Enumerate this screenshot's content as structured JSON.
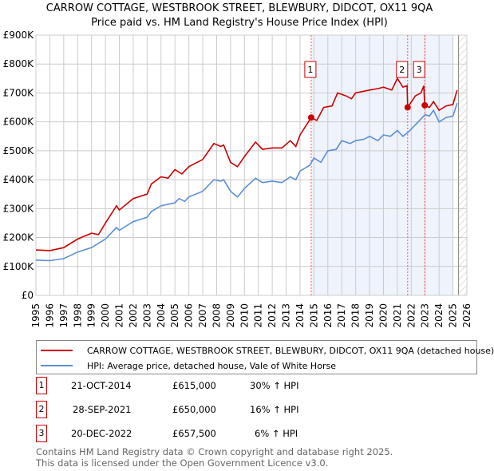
{
  "chart_data": {
    "type": "line",
    "title": "CARROW COTTAGE, WESTBROOK STREET, BLEWBURY, DIDCOT, OX11 9QA",
    "subtitle": "Price paid vs. HM Land Registry's House Price Index (HPI)",
    "xlim": [
      1995,
      2026
    ],
    "ylim": [
      0,
      900000
    ],
    "x_ticks": [
      "1995",
      "1996",
      "1997",
      "1998",
      "1999",
      "2000",
      "2001",
      "2002",
      "2003",
      "2004",
      "2005",
      "2006",
      "2007",
      "2008",
      "2009",
      "2010",
      "2011",
      "2012",
      "2013",
      "2014",
      "2015",
      "2016",
      "2017",
      "2018",
      "2019",
      "2020",
      "2021",
      "2022",
      "2023",
      "2024",
      "2025",
      "2026"
    ],
    "y_ticks": [
      {
        "v": 0,
        "label": "£0"
      },
      {
        "v": 100000,
        "label": "£100K"
      },
      {
        "v": 200000,
        "label": "£200K"
      },
      {
        "v": 300000,
        "label": "£300K"
      },
      {
        "v": 400000,
        "label": "£400K"
      },
      {
        "v": 500000,
        "label": "£500K"
      },
      {
        "v": 600000,
        "label": "£600K"
      },
      {
        "v": 700000,
        "label": "£700K"
      },
      {
        "v": 800000,
        "label": "£800K"
      },
      {
        "v": 900000,
        "label": "£900K"
      }
    ],
    "grid": true,
    "shaded_range": [
      2014.8,
      2025.0
    ],
    "hatched_from": 2025.4,
    "series": [
      {
        "name": "CARROW COTTAGE, WESTBROOK STREET, BLEWBURY, DIDCOT, OX11 9QA (detached house)",
        "color": "#cc0000",
        "x": [
          1995,
          1996,
          1997,
          1998,
          1999,
          1999.5,
          2000,
          2000.8,
          2001,
          2002,
          2003,
          2003.3,
          2004,
          2004.5,
          2005,
          2005.5,
          2006,
          2007,
          2007.8,
          2008.3,
          2008.5,
          2009,
          2009.5,
          2010,
          2010.8,
          2011.3,
          2012,
          2012.7,
          2013.3,
          2013.7,
          2014,
          2014.8,
          2015.2,
          2015.7,
          2016.3,
          2016.7,
          2017.3,
          2017.7,
          2018,
          2019,
          2019.6,
          2020,
          2020.6,
          2021,
          2021.4,
          2021.7,
          2021.74,
          2022.3,
          2022.7,
          2022.9,
          2022.97,
          2023.3,
          2023.6,
          2024,
          2024.5,
          2025,
          2025.3
        ],
        "y": [
          157000,
          155000,
          165000,
          195000,
          215000,
          210000,
          250000,
          310000,
          295000,
          335000,
          350000,
          385000,
          410000,
          405000,
          435000,
          420000,
          445000,
          470000,
          525000,
          515000,
          520000,
          460000,
          445000,
          480000,
          530000,
          505000,
          510000,
          510000,
          535000,
          515000,
          555000,
          615000,
          605000,
          650000,
          655000,
          700000,
          690000,
          680000,
          700000,
          710000,
          715000,
          720000,
          710000,
          750000,
          720000,
          725000,
          650000,
          690000,
          700000,
          725000,
          657500,
          650000,
          670000,
          640000,
          655000,
          660000,
          710000
        ]
      },
      {
        "name": "HPI: Average price, detached house, Vale of White Horse",
        "color": "#5b8fd4",
        "x": [
          1995,
          1996,
          1997,
          1998,
          1999,
          2000,
          2000.8,
          2001,
          2002,
          2003,
          2003.3,
          2004,
          2005,
          2005.3,
          2005.7,
          2006,
          2007,
          2007.8,
          2008.3,
          2008.5,
          2009,
          2009.5,
          2010,
          2010.8,
          2011.3,
          2012,
          2012.7,
          2013.3,
          2013.7,
          2014,
          2014.7,
          2015,
          2015.5,
          2016,
          2016.6,
          2017,
          2017.6,
          2018,
          2018.6,
          2019,
          2019.6,
          2020,
          2020.5,
          2021,
          2021.4,
          2021.8,
          2022.5,
          2023,
          2023.3,
          2023.6,
          2024,
          2024.5,
          2025,
          2025.3
        ],
        "y": [
          122000,
          120000,
          127000,
          150000,
          165000,
          195000,
          235000,
          225000,
          255000,
          270000,
          290000,
          310000,
          320000,
          335000,
          325000,
          340000,
          360000,
          400000,
          395000,
          400000,
          360000,
          340000,
          370000,
          405000,
          390000,
          395000,
          390000,
          410000,
          400000,
          430000,
          450000,
          475000,
          460000,
          500000,
          505000,
          535000,
          525000,
          535000,
          540000,
          550000,
          535000,
          555000,
          550000,
          570000,
          550000,
          565000,
          600000,
          625000,
          620000,
          640000,
          600000,
          615000,
          620000,
          665000
        ]
      }
    ],
    "sales": [
      {
        "id": "1",
        "x": 2014.8,
        "y": 615000
      },
      {
        "id": "2",
        "x": 2021.74,
        "y": 650000
      },
      {
        "id": "3",
        "x": 2022.97,
        "y": 657500
      }
    ]
  },
  "header": {
    "title": "CARROW COTTAGE, WESTBROOK STREET, BLEWBURY, DIDCOT, OX11 9QA",
    "subtitle": "Price paid vs. HM Land Registry's House Price Index (HPI)"
  },
  "legend": {
    "property": "CARROW COTTAGE, WESTBROOK STREET, BLEWBURY, DIDCOT, OX11 9QA (detached house)",
    "hpi": "HPI: Average price, detached house, Vale of White Horse"
  },
  "transactions": [
    {
      "num": "1",
      "date": "21-OCT-2014",
      "price": "£615,000",
      "change": "30% ↑ HPI"
    },
    {
      "num": "2",
      "date": "28-SEP-2021",
      "price": "£650,000",
      "change": "16% ↑ HPI"
    },
    {
      "num": "3",
      "date": "20-DEC-2022",
      "price": "£657,500",
      "change": "6% ↑ HPI"
    }
  ],
  "footer": {
    "line1": "Contains HM Land Registry data © Crown copyright and database right 2025.",
    "line2": "This data is licensed under the Open Government Licence v3.0."
  }
}
